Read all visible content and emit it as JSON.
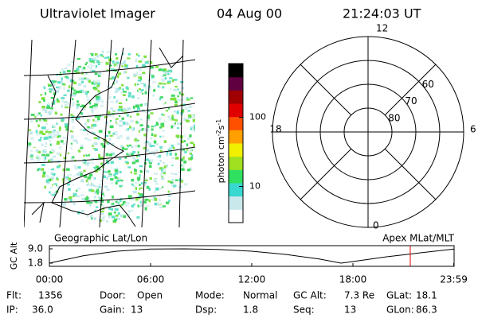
{
  "header": {
    "title": "Ultraviolet Imager",
    "date": "04 Aug 00",
    "time": "21:24:03 UT"
  },
  "map": {
    "label": "Geographic Lat/Lon"
  },
  "colorbar": {
    "label": "photon cm",
    "exp1": "-2",
    "unit2": "s",
    "exp2": "-1",
    "log": true,
    "clim": [
      3,
      600
    ],
    "ticks": [
      10,
      100
    ],
    "colors": [
      "#ffffff",
      "#c8e8ec",
      "#38d8d0",
      "#30e060",
      "#a0e020",
      "#f0f000",
      "#ffa000",
      "#ff5000",
      "#e00000",
      "#a00000",
      "#600040",
      "#000000"
    ]
  },
  "polar": {
    "label": "Apex MLat/MLT",
    "mlt_labels": [
      "12",
      "6",
      "0",
      "18"
    ],
    "lat_rings": [
      80,
      70,
      60
    ]
  },
  "chart_data": {
    "type": "line",
    "ylabel": "GC Alt",
    "x": [
      0,
      2,
      4,
      6,
      8,
      10,
      12,
      14,
      16,
      17.3,
      18,
      20,
      22,
      24
    ],
    "values": [
      1.8,
      5.5,
      7.8,
      8.9,
      9.0,
      8.7,
      7.8,
      6.2,
      3.9,
      1.8,
      2.6,
      5.0,
      7.0,
      8.9
    ],
    "color": "#000000",
    "xlim": [
      0,
      24
    ],
    "xticks": [
      {
        "value": 0,
        "label": "00:00"
      },
      {
        "value": 6,
        "label": "06:00"
      },
      {
        "value": 12,
        "label": "12:00"
      },
      {
        "value": 18,
        "label": "18:00"
      },
      {
        "value": 23.98,
        "label": "23:59"
      }
    ],
    "ylim": [
      1.8,
      9.0
    ],
    "yticks": [
      {
        "value": 1.8,
        "label": "1.8"
      },
      {
        "value": 9.0,
        "label": "9.0"
      }
    ],
    "marker_x": 21.4,
    "marker_color": "#e00000"
  },
  "info": [
    [
      {
        "label": "Flt:",
        "value": "1356"
      },
      {
        "label": "IP:",
        "value": "36.0"
      }
    ],
    [
      {
        "label": "Door:",
        "value": "Open"
      },
      {
        "label": "Gain:",
        "value": "13"
      }
    ],
    [
      {
        "label": "Mode:",
        "value": "Normal"
      },
      {
        "label": "Dsp:",
        "value": "1.8"
      }
    ],
    [
      {
        "label": "GC Alt:",
        "value": "7.3 Re"
      },
      {
        "label": "Seq:",
        "value": "13"
      }
    ],
    [
      {
        "label": "GLat:",
        "value": "18.1"
      },
      {
        "label": "GLon:",
        "value": "86.3"
      }
    ]
  ]
}
